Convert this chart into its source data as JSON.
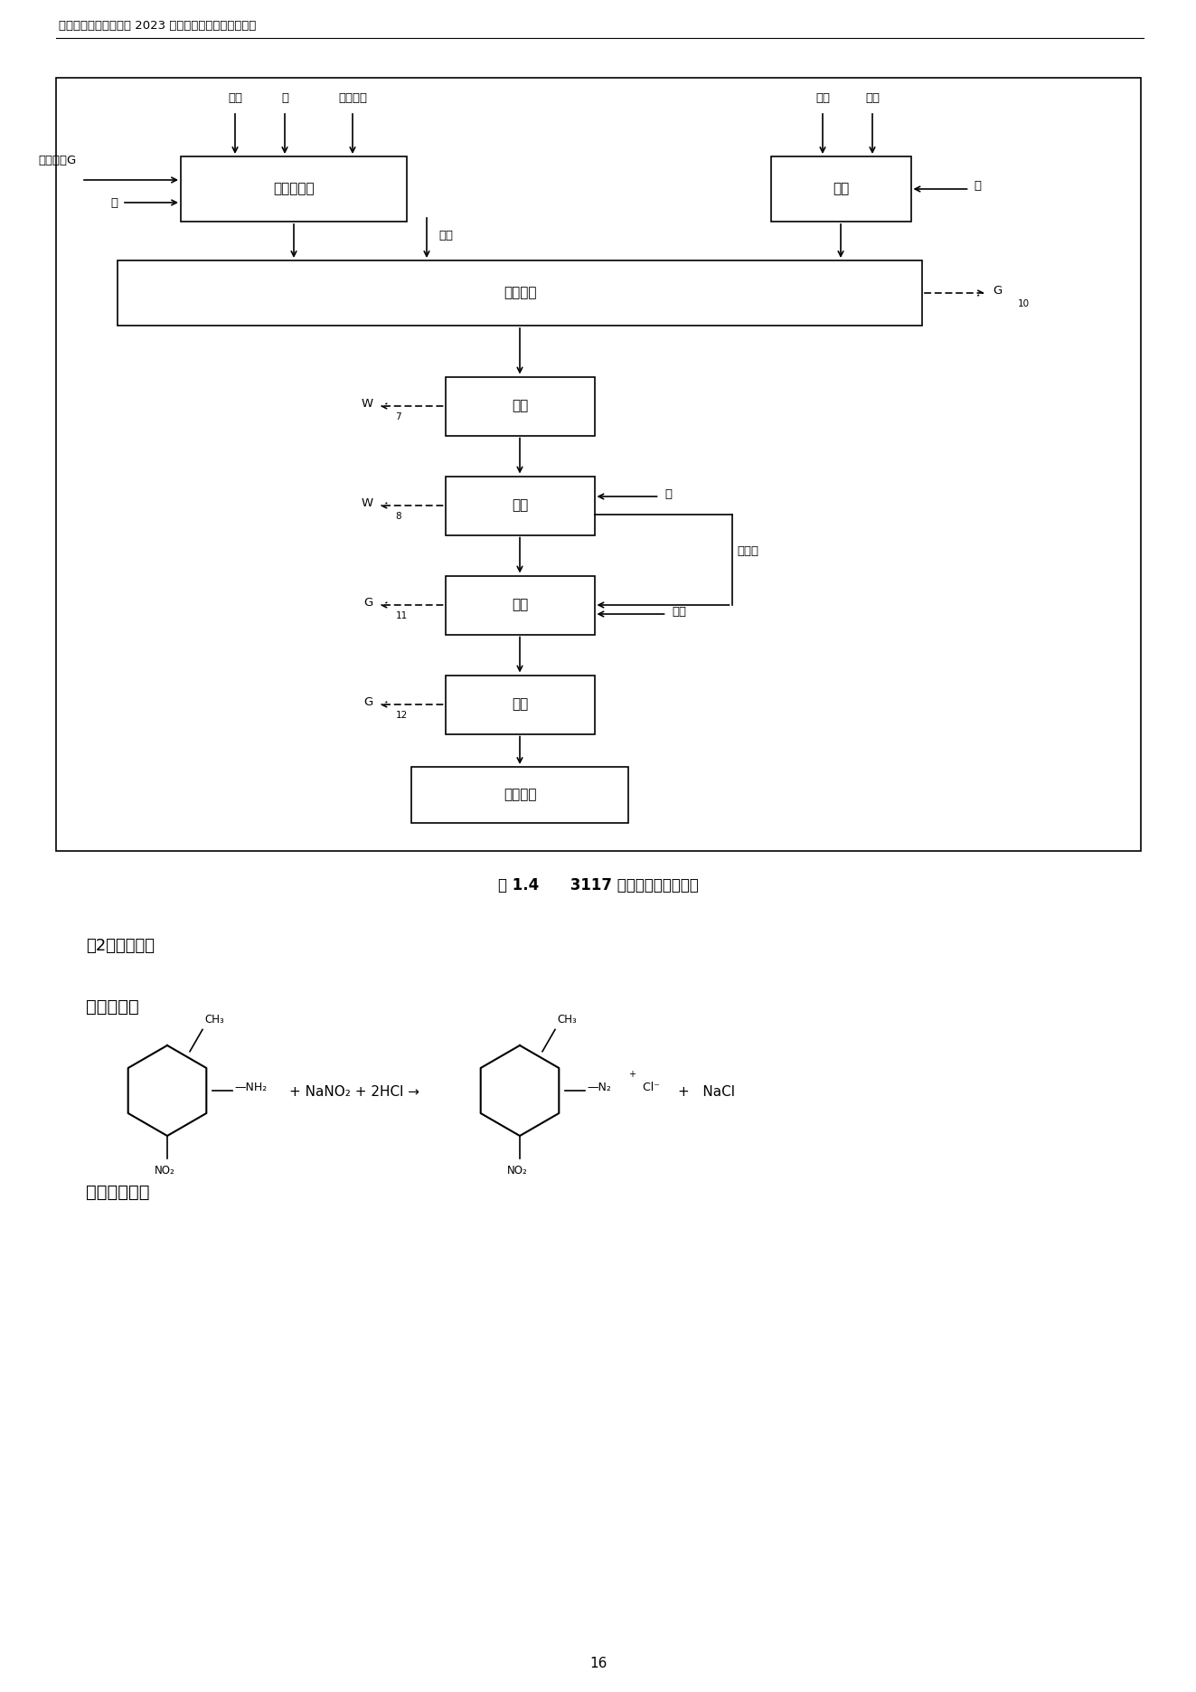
{
  "page_title": "宇虹颜料股份有限公司 2023 年度温室气体排放核查报告",
  "figure_caption": "图 1.4      3117 亮红生产工艺流程图",
  "section1": "（2）反应原理",
  "section2": "重氮化反应",
  "section3": "偶合组分溶解",
  "page_number": "16",
  "boxes": {
    "rz": {
      "label": "重氮化反应"
    },
    "rs": {
      "label": "溶解"
    },
    "oh": {
      "label": "偶合反应"
    },
    "yl": {
      "label": "压滤"
    },
    "sx": {
      "label": "水洗"
    },
    "hg": {
      "label": "烘干"
    },
    "fs": {
      "label": "粉碎"
    },
    "pm": {
      "label": "拼混成品"
    }
  }
}
